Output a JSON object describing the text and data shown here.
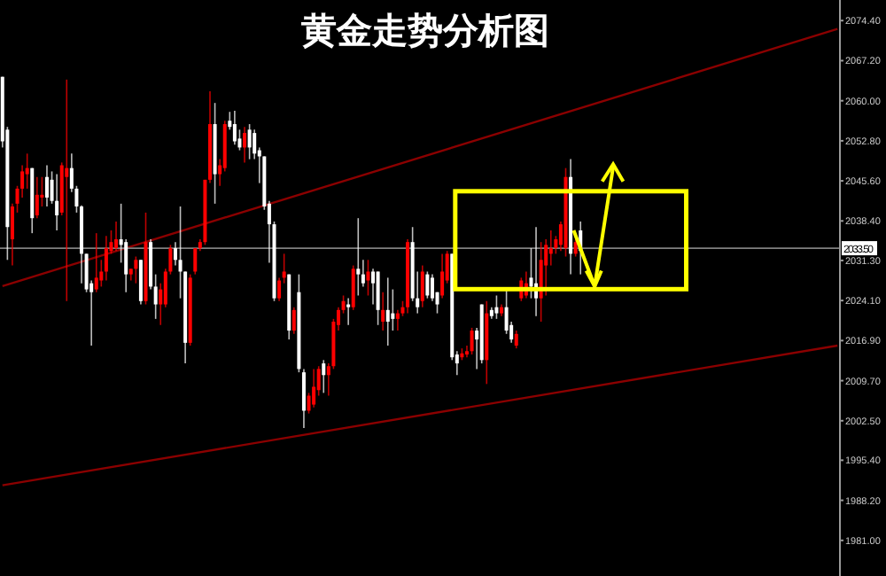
{
  "chart_data": {
    "type": "candlestick",
    "title": "黄金走势分析图",
    "categories": [
      null,
      null,
      null,
      null,
      null,
      null,
      null,
      null,
      null,
      null,
      null,
      null,
      null,
      null,
      null,
      null,
      null,
      null,
      null,
      null,
      null,
      null,
      null,
      null,
      null,
      null,
      null,
      null,
      null,
      null,
      null,
      null,
      null,
      null,
      null,
      null,
      null,
      null,
      null,
      null,
      null,
      null,
      null,
      null,
      null,
      null,
      null,
      null,
      null,
      null,
      null,
      null,
      null,
      null,
      null,
      null,
      null,
      null,
      null,
      null,
      null,
      null,
      null,
      null,
      null,
      null,
      null,
      null,
      null,
      null,
      null,
      null,
      null,
      null,
      null,
      null,
      null,
      null,
      null,
      null,
      null,
      null,
      null,
      null,
      null,
      null,
      null,
      null,
      null,
      null,
      null,
      null,
      null,
      null,
      null,
      null,
      null,
      null,
      null,
      null,
      null,
      null,
      null,
      null,
      null,
      null,
      null,
      null,
      null,
      null,
      null,
      null,
      null,
      null,
      null,
      null,
      null,
      null,
      null,
      null,
      null,
      null,
      null,
      null,
      null,
      null,
      null,
      null,
      null,
      null,
      null,
      null,
      null,
      null,
      null,
      null,
      null,
      null,
      null,
      null,
      null,
      null,
      null,
      null,
      null,
      null,
      null,
      null,
      null,
      null,
      null,
      null,
      null,
      null,
      null,
      null,
      null,
      null,
      null,
      null,
      null,
      null,
      null,
      null,
      null,
      null,
      null,
      null,
      null,
      null
    ],
    "ohlc": [
      [
        2064.3,
        2064.3,
        2051.6,
        2052.7
      ],
      [
        2054.8,
        2055.3,
        2031.4,
        2037.3
      ],
      [
        2035.1,
        2041.5,
        2030.4,
        2041.0
      ],
      [
        2041.5,
        2044.7,
        2039.9,
        2044.2
      ],
      [
        2044.2,
        2048.4,
        2042.6,
        2047.3
      ],
      [
        2046.8,
        2050.5,
        2044.2,
        2047.9
      ],
      [
        2047.9,
        2047.9,
        2036.2,
        2038.9
      ],
      [
        2039.4,
        2046.3,
        2038.9,
        2043.1
      ],
      [
        2042.6,
        2046.3,
        2041.0,
        2043.1
      ],
      [
        2046.3,
        2048.4,
        2041.0,
        2042.6
      ],
      [
        2045.8,
        2047.3,
        2041.5,
        2042.0
      ],
      [
        2042.0,
        2046.8,
        2036.7,
        2039.4
      ],
      [
        2039.9,
        2048.9,
        2039.4,
        2048.4
      ],
      [
        2046.3,
        2063.8,
        2024.0,
        2047.9
      ],
      [
        2047.9,
        2050.5,
        2043.6,
        2044.2
      ],
      [
        2044.2,
        2044.7,
        2039.9,
        2041.0
      ],
      [
        2041.0,
        2041.2,
        2027.2,
        2032.5
      ],
      [
        2032.5,
        2032.5,
        2025.6,
        2026.1
      ],
      [
        2027.2,
        2027.7,
        2016.0,
        2025.6
      ],
      [
        2026.1,
        2036.2,
        2025.6,
        2028.2
      ],
      [
        2027.7,
        2031.4,
        2026.6,
        2029.3
      ],
      [
        2029.3,
        2035.7,
        2027.7,
        2033.5
      ],
      [
        2033.0,
        2036.7,
        2032.5,
        2034.6
      ],
      [
        2033.5,
        2038.3,
        2033.0,
        2035.1
      ],
      [
        2035.1,
        2041.5,
        2030.9,
        2034.1
      ],
      [
        2034.6,
        2035.1,
        2025.6,
        2028.8
      ],
      [
        2028.8,
        2029.8,
        2027.7,
        2029.8
      ],
      [
        2029.8,
        2032.0,
        2027.2,
        2031.4
      ],
      [
        2031.4,
        2031.4,
        2023.4,
        2024.0
      ],
      [
        2024.0,
        2039.9,
        2023.4,
        2034.6
      ],
      [
        2034.6,
        2035.1,
        2026.1,
        2026.6
      ],
      [
        2026.6,
        2028.8,
        2020.8,
        2023.4
      ],
      [
        2023.4,
        2027.2,
        2019.7,
        2026.1
      ],
      [
        2023.4,
        2029.8,
        2022.9,
        2029.3
      ],
      [
        2029.3,
        2034.1,
        2028.8,
        2033.5
      ],
      [
        2033.5,
        2034.6,
        2030.4,
        2031.4
      ],
      [
        2031.4,
        2041.0,
        2024.5,
        2029.3
      ],
      [
        2029.3,
        2029.3,
        2012.8,
        2016.5
      ],
      [
        2016.5,
        2028.8,
        2016.0,
        2028.2
      ],
      [
        2029.3,
        2033.5,
        2028.8,
        2033.5
      ],
      [
        2033.5,
        2035.1,
        2033.0,
        2034.6
      ],
      [
        2034.6,
        2045.8,
        2034.1,
        2045.8
      ],
      [
        2045.8,
        2061.7,
        2045.2,
        2055.8
      ],
      [
        2055.8,
        2059.6,
        2041.5,
        2046.8
      ],
      [
        2046.8,
        2049.5,
        2044.7,
        2048.4
      ],
      [
        2047.9,
        2056.4,
        2047.3,
        2055.8
      ],
      [
        2056.4,
        2058.0,
        2054.8,
        2055.3
      ],
      [
        2055.8,
        2058.2,
        2052.1,
        2052.7
      ],
      [
        2053.2,
        2054.8,
        2051.1,
        2051.6
      ],
      [
        2051.6,
        2055.3,
        2048.9,
        2054.2
      ],
      [
        2054.8,
        2055.8,
        2049.5,
        2051.6
      ],
      [
        2054.2,
        2054.8,
        2049.5,
        2050.5
      ],
      [
        2051.1,
        2051.6,
        2045.2,
        2050.0
      ],
      [
        2050.0,
        2050.0,
        2040.4,
        2041.0
      ],
      [
        2041.5,
        2042.0,
        2030.9,
        2037.8
      ],
      [
        2037.8,
        2038.3,
        2024.0,
        2024.5
      ],
      [
        2024.5,
        2028.2,
        2024.0,
        2027.7
      ],
      [
        2028.2,
        2032.5,
        2027.2,
        2029.3
      ],
      [
        2028.8,
        2028.8,
        2017.1,
        2018.7
      ],
      [
        2018.7,
        2022.9,
        2018.1,
        2022.4
      ],
      [
        2025.6,
        2028.8,
        2011.2,
        2011.8
      ],
      [
        2011.2,
        2011.8,
        2001.2,
        2004.3
      ],
      [
        2004.3,
        2007.5,
        2003.8,
        2007.0
      ],
      [
        2005.4,
        2011.8,
        2004.9,
        2008.6
      ],
      [
        2008.0,
        2012.3,
        2007.0,
        2011.8
      ],
      [
        2012.8,
        2013.4,
        2007.5,
        2010.7
      ],
      [
        2010.7,
        2012.8,
        2007.0,
        2012.3
      ],
      [
        2012.3,
        2020.8,
        2011.8,
        2020.3
      ],
      [
        2019.7,
        2022.9,
        2018.7,
        2022.4
      ],
      [
        2022.4,
        2025.0,
        2021.8,
        2024.0
      ],
      [
        2023.4,
        2024.5,
        2019.7,
        2022.9
      ],
      [
        2022.9,
        2030.4,
        2022.4,
        2029.8
      ],
      [
        2029.8,
        2038.9,
        2025.0,
        2028.8
      ],
      [
        2028.8,
        2031.4,
        2026.6,
        2027.2
      ],
      [
        2027.7,
        2031.4,
        2025.0,
        2029.3
      ],
      [
        2029.3,
        2029.8,
        2023.4,
        2027.2
      ],
      [
        2029.3,
        2029.3,
        2019.7,
        2022.4
      ],
      [
        2020.3,
        2025.6,
        2018.7,
        2022.4
      ],
      [
        2022.4,
        2028.2,
        2016.0,
        2020.3
      ],
      [
        2021.8,
        2026.1,
        2018.7,
        2020.8
      ],
      [
        2020.8,
        2022.4,
        2018.7,
        2021.8
      ],
      [
        2021.8,
        2024.0,
        2021.3,
        2022.9
      ],
      [
        2022.9,
        2035.1,
        2021.8,
        2034.6
      ],
      [
        2034.6,
        2037.3,
        2024.0,
        2024.5
      ],
      [
        2024.5,
        2029.3,
        2021.8,
        2022.9
      ],
      [
        2024.0,
        2030.4,
        2022.9,
        2029.3
      ],
      [
        2028.8,
        2029.3,
        2024.5,
        2025.0
      ],
      [
        2028.2,
        2028.8,
        2024.0,
        2024.5
      ],
      [
        2025.6,
        2025.6,
        2021.8,
        2023.4
      ],
      [
        2025.0,
        2032.5,
        2024.5,
        2029.3
      ],
      [
        2027.7,
        2033.0,
        2027.2,
        2032.5
      ],
      [
        2032.5,
        2032.5,
        2013.4,
        2013.9
      ],
      [
        2014.4,
        2015.0,
        2010.7,
        2012.8
      ],
      [
        2013.9,
        2015.5,
        2013.4,
        2014.6
      ],
      [
        2014.4,
        2016.0,
        2013.9,
        2015.0
      ],
      [
        2015.0,
        2019.2,
        2014.4,
        2018.7
      ],
      [
        2018.7,
        2019.2,
        2011.8,
        2017.1
      ],
      [
        2023.4,
        2023.4,
        2012.8,
        2013.4
      ],
      [
        2013.4,
        2024.0,
        2009.1,
        2021.8
      ],
      [
        2022.4,
        2022.9,
        2020.8,
        2021.3
      ],
      [
        2022.9,
        2025.0,
        2020.8,
        2021.8
      ],
      [
        2021.8,
        2023.4,
        2021.3,
        2022.9
      ],
      [
        2022.9,
        2026.1,
        2018.1,
        2018.7
      ],
      [
        2019.7,
        2020.3,
        2016.5,
        2017.1
      ],
      [
        2016.0,
        2018.7,
        2015.5,
        2018.1
      ],
      [
        2024.5,
        2028.2,
        2024.0,
        2027.7
      ],
      [
        2025.0,
        2029.3,
        2024.5,
        2027.2
      ],
      [
        2028.2,
        2033.5,
        2024.5,
        2026.6
      ],
      [
        2027.2,
        2037.3,
        2021.3,
        2024.5
      ],
      [
        2024.5,
        2034.6,
        2020.3,
        2031.4
      ],
      [
        2030.4,
        2035.1,
        2025.0,
        2034.1
      ],
      [
        2032.5,
        2036.7,
        2030.4,
        2033.5
      ],
      [
        2033.5,
        2035.7,
        2032.5,
        2035.1
      ],
      [
        2034.1,
        2038.3,
        2033.0,
        2037.8
      ],
      [
        2033.5,
        2047.9,
        2032.0,
        2046.3
      ],
      [
        2046.3,
        2049.5,
        2028.8,
        2032.5
      ],
      [
        2032.5,
        2035.1,
        2032.0,
        2034.6
      ],
      [
        2036.7,
        2038.3,
        2028.8,
        2033.0
      ],
      null,
      null,
      null,
      null,
      null,
      null,
      null,
      null,
      null,
      null,
      null,
      null,
      null,
      null,
      null,
      null,
      null,
      null,
      null,
      null,
      null,
      null,
      null,
      null,
      null,
      null,
      null,
      null,
      null,
      null,
      null,
      null,
      null,
      null,
      null,
      null,
      null,
      null,
      null,
      null,
      null,
      null,
      null,
      null,
      null,
      null,
      null,
      null,
      null,
      null,
      null,
      null
    ],
    "colors": [
      "#ffffff",
      "#ffffff",
      "#ff0000",
      "#ff0000",
      "#ff0000",
      "#ff0000",
      "#ffffff",
      "#ff0000",
      "#ff0000",
      "#ffffff",
      "#ffffff",
      "#ffffff",
      "#ff0000",
      "#ff0000",
      "#ffffff",
      "#ffffff",
      "#ffffff",
      "#ffffff",
      "#ffffff",
      "#ff0000",
      "#ff0000",
      "#ff0000",
      "#ff0000",
      "#ff0000",
      "#ffffff",
      "#ffffff",
      "#ff0000",
      "#ff0000",
      "#ffffff",
      "#ff0000",
      "#ffffff",
      "#ffffff",
      "#ff0000",
      "#ff0000",
      "#ff0000",
      "#ffffff",
      "#ffffff",
      "#ffffff",
      "#ff0000",
      "#ff0000",
      "#ff0000",
      "#ff0000",
      "#ff0000",
      "#ffffff",
      "#ff0000",
      "#ff0000",
      "#ffffff",
      "#ffffff",
      "#ffffff",
      "#ff0000",
      "#ffffff",
      "#ffffff",
      "#ffffff",
      "#ffffff",
      "#ffffff",
      "#ffffff",
      "#ff0000",
      "#ff0000",
      "#ffffff",
      "#ff0000",
      "#ffffff",
      "#ffffff",
      "#ff0000",
      "#ff0000",
      "#ff0000",
      "#ffffff",
      "#ff0000",
      "#ff0000",
      "#ff0000",
      "#ff0000",
      "#ffffff",
      "#ff0000",
      "#ffffff",
      "#ffffff",
      "#ff0000",
      "#ffffff",
      "#ffffff",
      "#ff0000",
      "#ffffff",
      "#ffffff",
      "#ff0000",
      "#ff0000",
      "#ff0000",
      "#ffffff",
      "#ffffff",
      "#ff0000",
      "#ffffff",
      "#ffffff",
      "#ffffff",
      "#ff0000",
      "#ff0000",
      "#ffffff",
      "#ffffff",
      "#ff0000",
      "#ff0000",
      "#ff0000",
      "#ffffff",
      "#ffffff",
      "#ff0000",
      "#ffffff",
      "#ffffff",
      "#ff0000",
      "#ffffff",
      "#ffffff",
      "#ff0000",
      "#ff0000",
      "#ff0000",
      "#ffffff",
      "#ffffff",
      "#ff0000",
      "#ff0000",
      "#ff0000",
      "#ff0000",
      "#ff0000",
      "#ff0000",
      "#ffffff",
      "#ff0000",
      "#ffffff",
      null,
      null,
      null,
      null,
      null,
      null,
      null,
      null,
      null,
      null,
      null,
      null,
      null,
      null,
      null,
      null,
      null,
      null,
      null,
      null,
      null,
      null,
      null,
      null,
      null,
      null,
      null,
      null,
      null,
      null,
      null,
      null,
      null,
      null,
      null,
      null,
      null,
      null,
      null,
      null,
      null,
      null,
      null,
      null,
      null,
      null,
      null,
      null,
      null,
      null,
      null,
      null
    ],
    "series": [
      {
        "type": "line",
        "color": "#8b0000",
        "values": [
          2026.7,
          null,
          null,
          null,
          null,
          null,
          null,
          null,
          null,
          null,
          null,
          null,
          null,
          null,
          null,
          null,
          null,
          null,
          null,
          null,
          null,
          null,
          null,
          null,
          null,
          null,
          null,
          null,
          null,
          null,
          null,
          null,
          null,
          null,
          null,
          null,
          null,
          null,
          null,
          null,
          null,
          null,
          null,
          null,
          null,
          null,
          null,
          null,
          null,
          null,
          null,
          null,
          null,
          null,
          null,
          null,
          null,
          null,
          null,
          null,
          null,
          null,
          null,
          null,
          null,
          null,
          null,
          null,
          null,
          null,
          null,
          null,
          null,
          null,
          null,
          null,
          null,
          null,
          null,
          null,
          null,
          null,
          null,
          null,
          null,
          null,
          null,
          null,
          null,
          null,
          null,
          null,
          null,
          null,
          null,
          null,
          null,
          null,
          null,
          null,
          null,
          null,
          null,
          null,
          null,
          null,
          null,
          null,
          null,
          null,
          null,
          null,
          null,
          null,
          null,
          null,
          null,
          null,
          null,
          null,
          null,
          null,
          null,
          null,
          null,
          null,
          null,
          null,
          null,
          null,
          null,
          null,
          null,
          null,
          null,
          null,
          null,
          null,
          null,
          null,
          null,
          null,
          null,
          null,
          null,
          null,
          null,
          null,
          null,
          null,
          null,
          null,
          null,
          null,
          null,
          null,
          null,
          null,
          null,
          null,
          null,
          null,
          null,
          null,
          null,
          null,
          null,
          null,
          null,
          2072.9
        ]
      },
      {
        "type": "line",
        "color": "#8b0000",
        "values": [
          1990.9,
          null,
          null,
          null,
          null,
          null,
          null,
          null,
          null,
          null,
          null,
          null,
          null,
          null,
          null,
          null,
          null,
          null,
          null,
          null,
          null,
          null,
          null,
          null,
          null,
          null,
          null,
          null,
          null,
          null,
          null,
          null,
          null,
          null,
          null,
          null,
          null,
          null,
          null,
          null,
          null,
          null,
          null,
          null,
          null,
          null,
          null,
          null,
          null,
          null,
          null,
          null,
          null,
          null,
          null,
          null,
          null,
          null,
          null,
          null,
          null,
          null,
          null,
          null,
          null,
          null,
          null,
          null,
          null,
          null,
          null,
          null,
          null,
          null,
          null,
          null,
          null,
          null,
          null,
          null,
          null,
          null,
          null,
          null,
          null,
          null,
          null,
          null,
          null,
          null,
          null,
          null,
          null,
          null,
          null,
          null,
          null,
          null,
          null,
          null,
          null,
          null,
          null,
          null,
          null,
          null,
          null,
          null,
          null,
          null,
          null,
          null,
          null,
          null,
          null,
          null,
          null,
          null,
          null,
          null,
          null,
          null,
          null,
          null,
          null,
          null,
          null,
          null,
          null,
          null,
          null,
          null,
          null,
          null,
          null,
          null,
          null,
          null,
          null,
          null,
          null,
          null,
          null,
          null,
          null,
          null,
          null,
          null,
          null,
          null,
          null,
          null,
          null,
          null,
          null,
          null,
          null,
          null,
          null,
          null,
          null,
          null,
          null,
          null,
          null,
          null,
          null,
          null,
          null,
          2016.0
        ]
      }
    ],
    "ref_lines": [
      {
        "axis": "y",
        "value": 2033.5,
        "label": "2033.50",
        "color": "#808080"
      }
    ],
    "ylim": [
      1974.6,
      2078.1
    ],
    "yticks": [
      {
        "value": 2074.4,
        "label": "2074.40"
      },
      {
        "value": 2067.2,
        "label": "2067.20"
      },
      {
        "value": 2060,
        "label": "2060.00"
      },
      {
        "value": 2052.8,
        "label": "2052.80"
      },
      {
        "value": 2045.6,
        "label": "2045.60"
      },
      {
        "value": 2038.4,
        "label": "2038.40"
      },
      {
        "value": 2031.3,
        "label": "2031.30"
      },
      {
        "value": 2024.1,
        "label": "2024.10"
      },
      {
        "value": 2016.9,
        "label": "2016.90"
      },
      {
        "value": 2009.7,
        "label": "2009.70"
      },
      {
        "value": 2002.5,
        "label": "2002.50"
      },
      {
        "value": 1995.4,
        "label": "1995.40"
      },
      {
        "value": 1988.2,
        "label": "1988.20"
      },
      {
        "value": 1981,
        "label": "1981.00"
      }
    ],
    "tick_labels": "y",
    "grid": false
  }
}
